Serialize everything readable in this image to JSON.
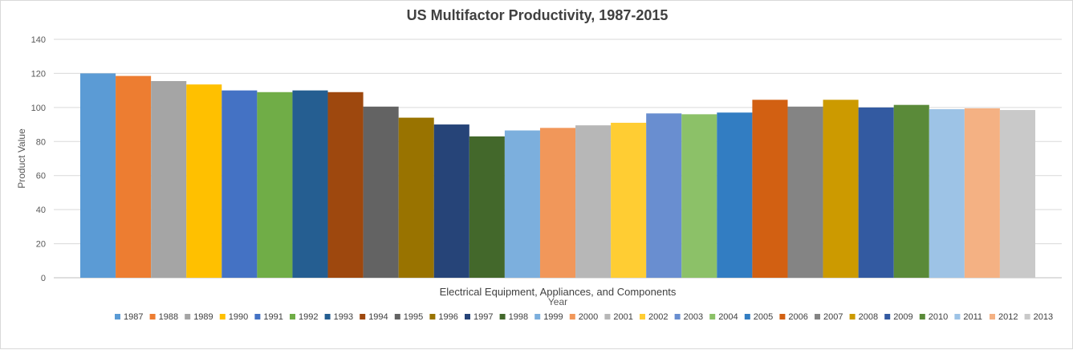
{
  "chart_data": {
    "type": "bar",
    "title": "US Multifactor Productivity, 1987-2015",
    "xlabel": "Year",
    "ylabel": "Product Value",
    "category": "Electrical Equipment, Appliances, and Components",
    "ylim": [
      0,
      140
    ],
    "yticks": [
      0,
      20,
      40,
      60,
      80,
      100,
      120,
      140
    ],
    "grid": true,
    "legend_position": "bottom",
    "series": [
      {
        "name": "1987",
        "value": 120,
        "color": "#5B9BD5"
      },
      {
        "name": "1988",
        "value": 118.5,
        "color": "#ED7D31"
      },
      {
        "name": "1989",
        "value": 115.5,
        "color": "#A5A5A5"
      },
      {
        "name": "1990",
        "value": 113.5,
        "color": "#FFC000"
      },
      {
        "name": "1991",
        "value": 110,
        "color": "#4472C4"
      },
      {
        "name": "1992",
        "value": 109,
        "color": "#70AD47"
      },
      {
        "name": "1993",
        "value": 110,
        "color": "#255E91"
      },
      {
        "name": "1994",
        "value": 109,
        "color": "#9E480E"
      },
      {
        "name": "1995",
        "value": 100.5,
        "color": "#636363"
      },
      {
        "name": "1996",
        "value": 94,
        "color": "#997300"
      },
      {
        "name": "1997",
        "value": 90,
        "color": "#264478"
      },
      {
        "name": "1998",
        "value": 83,
        "color": "#43682B"
      },
      {
        "name": "1999",
        "value": 86.5,
        "color": "#7CAFDD"
      },
      {
        "name": "2000",
        "value": 88,
        "color": "#F1975A"
      },
      {
        "name": "2001",
        "value": 89.5,
        "color": "#B7B7B7"
      },
      {
        "name": "2002",
        "value": 91,
        "color": "#FFCD33"
      },
      {
        "name": "2003",
        "value": 96.5,
        "color": "#698ED0"
      },
      {
        "name": "2004",
        "value": 96,
        "color": "#8CC168"
      },
      {
        "name": "2005",
        "value": 97,
        "color": "#327DC2"
      },
      {
        "name": "2006",
        "value": 104.5,
        "color": "#D26012"
      },
      {
        "name": "2007",
        "value": 100.5,
        "color": "#848484"
      },
      {
        "name": "2008",
        "value": 104.5,
        "color": "#CC9A00"
      },
      {
        "name": "2009",
        "value": 100,
        "color": "#335AA1"
      },
      {
        "name": "2010",
        "value": 101.5,
        "color": "#5A8A39"
      },
      {
        "name": "2011",
        "value": 99,
        "color": "#9DC3E6"
      },
      {
        "name": "2012",
        "value": 99.5,
        "color": "#F4B183"
      },
      {
        "name": "2013",
        "value": 98.5,
        "color": "#C9C9C9"
      }
    ]
  }
}
